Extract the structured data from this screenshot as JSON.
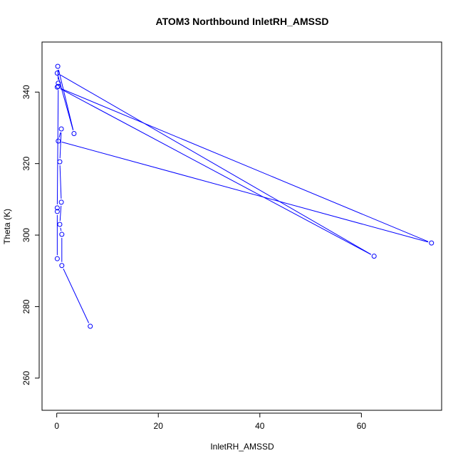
{
  "chart_data": {
    "type": "line",
    "title": "ATOM3 Northbound InletRH_AMSSD",
    "xlabel": "InletRH_AMSSD",
    "ylabel": "Theta (K)",
    "xlim": [
      -2.9,
      75.8
    ],
    "ylim": [
      251,
      354
    ],
    "x_ticks": [
      0,
      20,
      40,
      60
    ],
    "y_ticks": [
      260,
      280,
      300,
      320,
      340
    ],
    "grid": false,
    "series_color": "#0000ff",
    "marker": "open-circle",
    "points": [
      {
        "x": 6.6,
        "y": 274.5
      },
      {
        "x": 1.0,
        "y": 291.5
      },
      {
        "x": 1.0,
        "y": 300.2
      },
      {
        "x": 0.6,
        "y": 303.0
      },
      {
        "x": 0.9,
        "y": 309.2
      },
      {
        "x": 0.6,
        "y": 320.5
      },
      {
        "x": 0.9,
        "y": 329.7
      },
      {
        "x": 0.3,
        "y": 326.3
      },
      {
        "x": 73.8,
        "y": 297.8
      },
      {
        "x": 0.1,
        "y": 341.4
      },
      {
        "x": 62.5,
        "y": 294.1
      },
      {
        "x": 0.1,
        "y": 345.3
      },
      {
        "x": 3.4,
        "y": 328.4
      },
      {
        "x": 0.2,
        "y": 347.2
      },
      {
        "x": 0.3,
        "y": 342.5
      },
      {
        "x": 0.3,
        "y": 341.6
      },
      {
        "x": 0.1,
        "y": 307.6
      },
      {
        "x": 0.1,
        "y": 306.6
      },
      {
        "x": 0.1,
        "y": 293.4
      }
    ]
  }
}
